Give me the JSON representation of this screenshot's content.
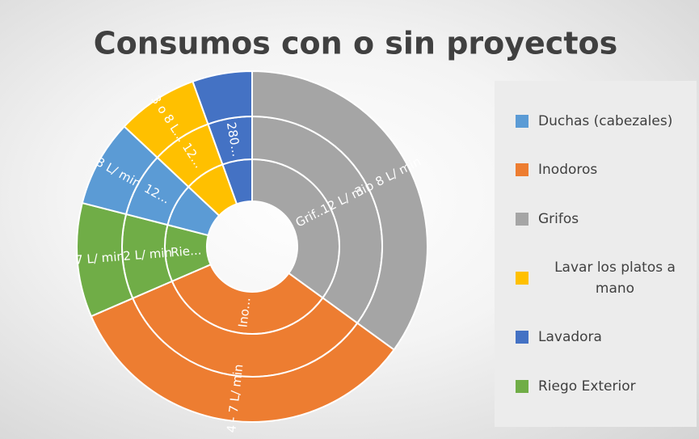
{
  "chart_data": {
    "type": "doughnut",
    "title": "Consumos con o sin proyectos",
    "categories": [
      "Grifos",
      "Inodoros",
      "Riego Exterior",
      "Duchas (cabezales)",
      "Lavar los platos a mano",
      "Lavadora"
    ],
    "colors": [
      "#a5a5a5",
      "#ed7d31",
      "#70ad47",
      "#5b9bd5",
      "#ffc000",
      "#4472c4"
    ],
    "legend_order": [
      3,
      1,
      0,
      4,
      5,
      2
    ],
    "series": [
      {
        "values": [
          35,
          33.5,
          10.5,
          8,
          7.5,
          5.5
        ],
        "labels": [
          "Grif...",
          "Ino...",
          "Rie...",
          null,
          null,
          null
        ]
      },
      {
        "values": [
          35,
          33.5,
          10.5,
          8,
          7.5,
          5.5
        ],
        "labels": [
          "12 L/ min.",
          null,
          "12 L/ min",
          "12...",
          "12...",
          "280..."
        ]
      },
      {
        "values": [
          35,
          33.5,
          10.5,
          8,
          7.5,
          5.5
        ],
        "labels": [
          "3 o 8 L/ min",
          "4 - 7 L/ min",
          "7 L/ min",
          "8 L/ min",
          "3 o 8 L...",
          null
        ]
      }
    ],
    "legend": "right"
  }
}
